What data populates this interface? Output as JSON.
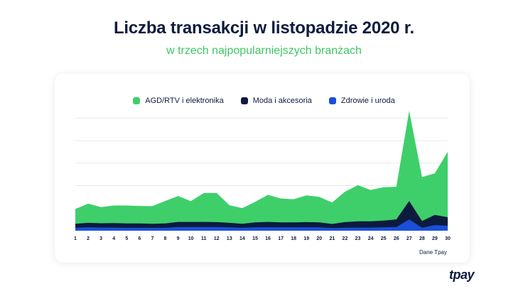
{
  "title": "Liczba transakcji w listopadzie 2020 r.",
  "subtitle": "w trzech najpopularniejszych branżach",
  "source": "Dane Tpay",
  "brand": "tpay",
  "chart_data": {
    "type": "area",
    "stacked": true,
    "grid": true,
    "legend_position": "top",
    "x": [
      1,
      2,
      3,
      4,
      5,
      6,
      7,
      8,
      9,
      10,
      11,
      12,
      13,
      14,
      15,
      16,
      17,
      18,
      19,
      20,
      21,
      22,
      23,
      24,
      25,
      26,
      27,
      28,
      29,
      30
    ],
    "x_tick_labels": [
      "1",
      "2",
      "3",
      "4",
      "5",
      "6",
      "7",
      "8",
      "9",
      "10",
      "11",
      "12",
      "13",
      "14",
      "15",
      "16",
      "17",
      "18",
      "19",
      "20",
      "21",
      "22",
      "23",
      "24",
      "25",
      "26",
      "27",
      "28",
      "29",
      "30"
    ],
    "ylim": [
      0,
      5.2
    ],
    "y_gridlines": [
      1,
      2,
      3,
      4,
      5
    ],
    "series": [
      {
        "name": "Zdrowie i uroda",
        "color": "#1a4fd8",
        "values": [
          0.13,
          0.15,
          0.14,
          0.14,
          0.13,
          0.13,
          0.13,
          0.13,
          0.16,
          0.16,
          0.16,
          0.16,
          0.15,
          0.13,
          0.15,
          0.15,
          0.15,
          0.15,
          0.15,
          0.15,
          0.12,
          0.13,
          0.14,
          0.14,
          0.15,
          0.16,
          0.5,
          0.13,
          0.25,
          0.22
        ]
      },
      {
        "name": "Moda i akcesoria",
        "color": "#0d1b3e",
        "values": [
          0.18,
          0.2,
          0.19,
          0.2,
          0.19,
          0.19,
          0.18,
          0.19,
          0.23,
          0.23,
          0.23,
          0.22,
          0.2,
          0.18,
          0.22,
          0.24,
          0.22,
          0.22,
          0.23,
          0.22,
          0.18,
          0.25,
          0.28,
          0.28,
          0.3,
          0.34,
          0.82,
          0.3,
          0.45,
          0.38
        ]
      },
      {
        "name": "AGD/RTV i elektronika",
        "color": "#3ecf6a",
        "values": [
          0.65,
          0.85,
          0.72,
          0.78,
          0.8,
          0.78,
          0.78,
          1.0,
          1.15,
          0.92,
          1.28,
          1.3,
          0.78,
          0.69,
          0.91,
          1.2,
          1.06,
          1.03,
          1.19,
          1.13,
          0.95,
          1.35,
          1.6,
          1.39,
          1.48,
          1.45,
          4.0,
          1.95,
          1.85,
          2.9
        ]
      }
    ],
    "legend_order": [
      "AGD/RTV i elektronika",
      "Moda i akcesoria",
      "Zdrowie i uroda"
    ]
  }
}
